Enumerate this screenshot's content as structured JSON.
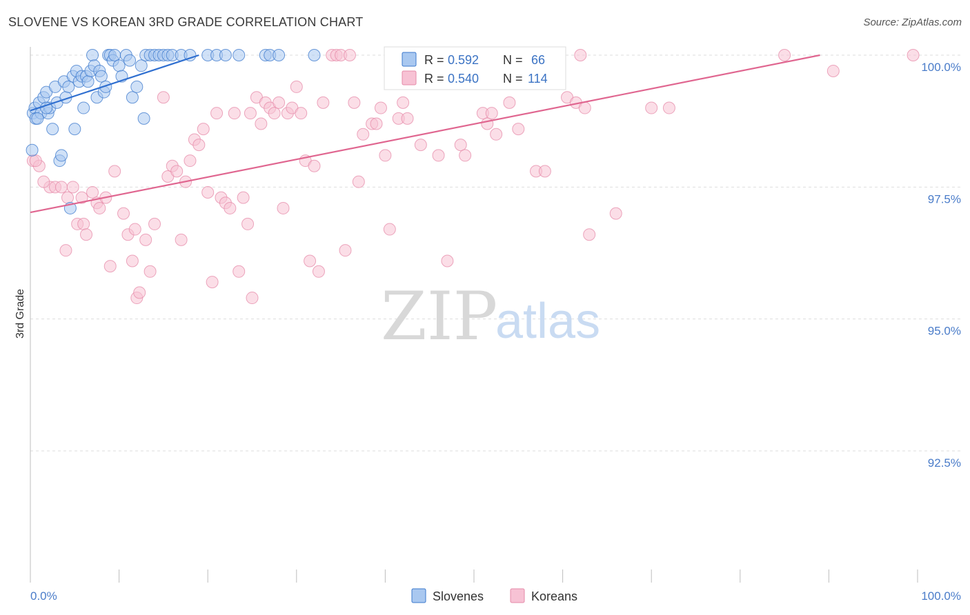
{
  "title": "SLOVENE VS KOREAN 3RD GRADE CORRELATION CHART",
  "source": "Source: ZipAtlas.com",
  "watermark": {
    "zip": "ZIP",
    "atlas": "atlas"
  },
  "colors": {
    "slovenes_fill": "#a9c8f0",
    "slovenes_stroke": "#3b78cc",
    "slovenes_line": "#2f6fd0",
    "koreans_fill": "#f7c2d4",
    "koreans_stroke": "#e58aa8",
    "koreans_line": "#e06690",
    "grid": "#dddddd",
    "tick_text": "#4a7cc9"
  },
  "legend": {
    "r_label": "R =",
    "n_label": "N =",
    "slovenes": {
      "r": "0.592",
      "n": "66"
    },
    "koreans": {
      "r": "0.540",
      "n": "114"
    }
  },
  "chart_data": {
    "type": "scatter",
    "title": "SLOVENE VS KOREAN 3RD GRADE CORRELATION CHART",
    "xlabel": "",
    "ylabel": "3rd Grade",
    "xlim": [
      0,
      100
    ],
    "ylim": [
      90.0,
      100.35
    ],
    "x_tick_labels": [
      {
        "value": 0,
        "label": "0.0%"
      },
      {
        "value": 100,
        "label": "100.0%"
      }
    ],
    "x_minor_ticks": [
      0,
      10,
      20,
      30,
      40,
      50,
      60,
      70,
      80,
      90,
      100
    ],
    "y_ticks": [
      {
        "value": 100.0,
        "label": "100.0%"
      },
      {
        "value": 97.5,
        "label": "97.5%"
      },
      {
        "value": 95.0,
        "label": "95.0%"
      },
      {
        "value": 92.5,
        "label": "92.5%"
      }
    ],
    "series": [
      {
        "name": "Slovenes",
        "r": 0.592,
        "n": 66,
        "trend": {
          "x": [
            0,
            19
          ],
          "y": [
            98.95,
            100.0
          ]
        },
        "points": [
          [
            0.2,
            98.2
          ],
          [
            0.3,
            98.9
          ],
          [
            0.5,
            99.0
          ],
          [
            0.6,
            98.8
          ],
          [
            1.0,
            99.1
          ],
          [
            1.2,
            98.9
          ],
          [
            1.5,
            99.2
          ],
          [
            1.8,
            99.3
          ],
          [
            2.0,
            98.9
          ],
          [
            2.2,
            99.0
          ],
          [
            2.5,
            98.6
          ],
          [
            2.8,
            99.4
          ],
          [
            3.0,
            99.1
          ],
          [
            3.3,
            98.0
          ],
          [
            3.5,
            98.1
          ],
          [
            3.8,
            99.5
          ],
          [
            4.0,
            99.2
          ],
          [
            4.3,
            99.4
          ],
          [
            4.5,
            97.1
          ],
          [
            4.8,
            99.6
          ],
          [
            5.0,
            98.6
          ],
          [
            5.2,
            99.7
          ],
          [
            5.5,
            99.5
          ],
          [
            5.8,
            99.6
          ],
          [
            6.0,
            99.0
          ],
          [
            6.3,
            99.6
          ],
          [
            6.5,
            99.5
          ],
          [
            6.8,
            99.7
          ],
          [
            7.0,
            100.0
          ],
          [
            7.2,
            99.8
          ],
          [
            7.5,
            99.2
          ],
          [
            7.8,
            99.7
          ],
          [
            8.0,
            99.6
          ],
          [
            8.3,
            99.3
          ],
          [
            8.5,
            99.4
          ],
          [
            8.8,
            100.0
          ],
          [
            9.0,
            100.0
          ],
          [
            9.3,
            99.9
          ],
          [
            9.5,
            100.0
          ],
          [
            10.0,
            99.8
          ],
          [
            10.3,
            99.6
          ],
          [
            10.8,
            100.0
          ],
          [
            11.2,
            99.9
          ],
          [
            11.5,
            99.2
          ],
          [
            12.0,
            99.4
          ],
          [
            12.5,
            99.8
          ],
          [
            12.8,
            98.8
          ],
          [
            13.0,
            100.0
          ],
          [
            13.5,
            100.0
          ],
          [
            14.0,
            100.0
          ],
          [
            14.5,
            100.0
          ],
          [
            15.0,
            100.0
          ],
          [
            15.5,
            100.0
          ],
          [
            16.0,
            100.0
          ],
          [
            17.0,
            100.0
          ],
          [
            18.0,
            100.0
          ],
          [
            20.0,
            100.0
          ],
          [
            21.0,
            100.0
          ],
          [
            22.0,
            100.0
          ],
          [
            23.5,
            100.0
          ],
          [
            26.5,
            100.0
          ],
          [
            27.0,
            100.0
          ],
          [
            28.0,
            100.0
          ],
          [
            32.0,
            100.0
          ],
          [
            1.8,
            99.0
          ],
          [
            0.8,
            98.8
          ]
        ]
      },
      {
        "name": "Koreans",
        "r": 0.54,
        "n": 114,
        "trend": {
          "x": [
            0,
            89
          ],
          "y": [
            97.02,
            100.0
          ]
        },
        "points": [
          [
            0.3,
            98.0
          ],
          [
            1.0,
            97.9
          ],
          [
            2.2,
            97.5
          ],
          [
            2.8,
            97.5
          ],
          [
            3.5,
            97.5
          ],
          [
            4.0,
            96.3
          ],
          [
            4.2,
            97.3
          ],
          [
            4.8,
            97.5
          ],
          [
            5.3,
            96.8
          ],
          [
            5.8,
            97.3
          ],
          [
            6.0,
            96.8
          ],
          [
            6.3,
            96.6
          ],
          [
            7.0,
            97.4
          ],
          [
            7.5,
            97.2
          ],
          [
            8.5,
            97.3
          ],
          [
            9.0,
            96.0
          ],
          [
            9.5,
            97.8
          ],
          [
            10.5,
            97.0
          ],
          [
            11.0,
            96.6
          ],
          [
            11.5,
            96.1
          ],
          [
            11.8,
            96.7
          ],
          [
            12.0,
            95.4
          ],
          [
            12.3,
            95.5
          ],
          [
            13.0,
            96.5
          ],
          [
            13.5,
            95.9
          ],
          [
            14.0,
            96.8
          ],
          [
            15.0,
            99.2
          ],
          [
            15.5,
            97.7
          ],
          [
            16.0,
            97.9
          ],
          [
            16.5,
            97.8
          ],
          [
            17.0,
            96.5
          ],
          [
            17.5,
            97.6
          ],
          [
            18.0,
            98.0
          ],
          [
            18.5,
            98.4
          ],
          [
            19.0,
            98.3
          ],
          [
            19.5,
            98.6
          ],
          [
            20.0,
            97.4
          ],
          [
            20.5,
            95.7
          ],
          [
            21.0,
            98.9
          ],
          [
            21.5,
            97.3
          ],
          [
            22.0,
            97.2
          ],
          [
            22.5,
            97.1
          ],
          [
            23.0,
            98.9
          ],
          [
            23.5,
            95.9
          ],
          [
            24.0,
            97.3
          ],
          [
            24.5,
            96.8
          ],
          [
            24.8,
            98.9
          ],
          [
            25.0,
            95.4
          ],
          [
            25.5,
            99.2
          ],
          [
            26.0,
            98.7
          ],
          [
            26.5,
            99.1
          ],
          [
            27.0,
            99.0
          ],
          [
            27.5,
            98.9
          ],
          [
            28.0,
            99.1
          ],
          [
            28.5,
            97.1
          ],
          [
            29.0,
            98.9
          ],
          [
            29.5,
            99.0
          ],
          [
            30.0,
            99.4
          ],
          [
            30.5,
            98.9
          ],
          [
            31.0,
            98.0
          ],
          [
            31.5,
            96.1
          ],
          [
            32.0,
            97.9
          ],
          [
            32.5,
            95.9
          ],
          [
            33.0,
            99.1
          ],
          [
            34.0,
            100.0
          ],
          [
            34.5,
            100.0
          ],
          [
            35.0,
            100.0
          ],
          [
            35.5,
            96.3
          ],
          [
            36.0,
            100.0
          ],
          [
            36.5,
            99.1
          ],
          [
            37.0,
            97.6
          ],
          [
            37.5,
            98.5
          ],
          [
            38.5,
            98.7
          ],
          [
            39.0,
            98.7
          ],
          [
            39.5,
            99.0
          ],
          [
            40.0,
            98.1
          ],
          [
            40.5,
            96.7
          ],
          [
            41.0,
            100.0
          ],
          [
            41.5,
            98.8
          ],
          [
            42.5,
            98.8
          ],
          [
            42.0,
            99.1
          ],
          [
            43.0,
            100.0
          ],
          [
            44.0,
            98.3
          ],
          [
            46.0,
            98.1
          ],
          [
            47.0,
            96.1
          ],
          [
            48.0,
            100.0
          ],
          [
            48.5,
            98.3
          ],
          [
            49.0,
            98.1
          ],
          [
            50.0,
            100.0
          ],
          [
            51.0,
            98.9
          ],
          [
            51.5,
            98.7
          ],
          [
            52.0,
            98.9
          ],
          [
            52.5,
            98.5
          ],
          [
            53.0,
            100.0
          ],
          [
            54.0,
            99.1
          ],
          [
            55.0,
            98.6
          ],
          [
            56.0,
            100.0
          ],
          [
            57.0,
            97.8
          ],
          [
            58.0,
            97.8
          ],
          [
            59.0,
            100.0
          ],
          [
            60.5,
            99.2
          ],
          [
            61.5,
            99.1
          ],
          [
            62.0,
            100.0
          ],
          [
            62.5,
            99.0
          ],
          [
            63.0,
            96.6
          ],
          [
            66.0,
            97.0
          ],
          [
            70.0,
            99.0
          ],
          [
            72.0,
            99.0
          ],
          [
            85.0,
            100.0
          ],
          [
            90.5,
            99.7
          ],
          [
            99.5,
            100.0
          ],
          [
            1.5,
            97.6
          ],
          [
            0.6,
            98.0
          ],
          [
            7.8,
            97.1
          ]
        ]
      }
    ],
    "legend_position": "top-center",
    "grid": true
  }
}
